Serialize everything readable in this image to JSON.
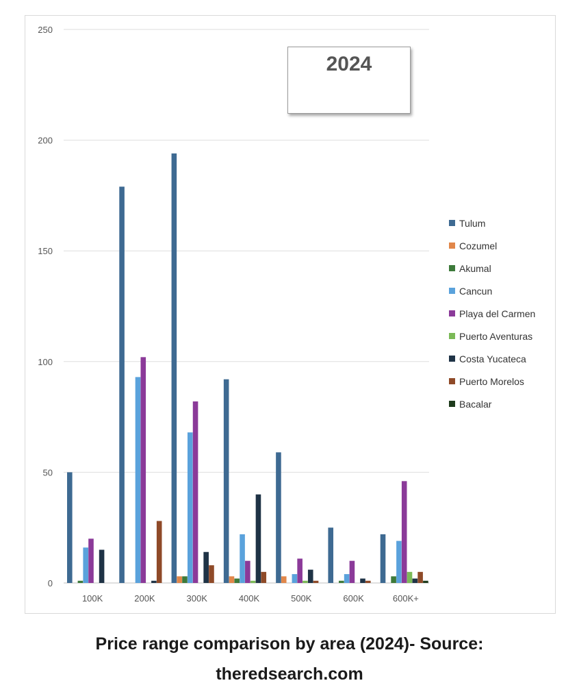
{
  "chart_data": {
    "type": "bar",
    "title": "2024",
    "xlabel": "",
    "ylabel": "",
    "ylim": [
      0,
      250
    ],
    "yticks": [
      0,
      50,
      100,
      150,
      200,
      250
    ],
    "grid": true,
    "legend_position": "right",
    "categories": [
      "100K",
      "200K",
      "300K",
      "400K",
      "500K",
      "600K",
      "600K+"
    ],
    "series": [
      {
        "name": "Tulum",
        "color": "#3e6a92",
        "values": [
          50,
          179,
          194,
          92,
          59,
          25,
          22
        ]
      },
      {
        "name": "Cozumel",
        "color": "#e1874a",
        "values": [
          0,
          0,
          3,
          3,
          3,
          0,
          0
        ]
      },
      {
        "name": "Akumal",
        "color": "#3d7a3a",
        "values": [
          1,
          0,
          3,
          2,
          0,
          1,
          3
        ]
      },
      {
        "name": "Cancun",
        "color": "#5aa2dc",
        "values": [
          16,
          93,
          68,
          22,
          4,
          4,
          19
        ]
      },
      {
        "name": "Playa del Carmen",
        "color": "#8b3a99",
        "values": [
          20,
          102,
          82,
          10,
          11,
          10,
          46
        ]
      },
      {
        "name": "Puerto Aventuras",
        "color": "#7bb957",
        "values": [
          0,
          0,
          0,
          1,
          1,
          0,
          5
        ]
      },
      {
        "name": "Costa Yucateca",
        "color": "#1f3346",
        "values": [
          15,
          1,
          14,
          40,
          6,
          2,
          2
        ]
      },
      {
        "name": "Puerto Morelos",
        "color": "#8f4a28",
        "values": [
          0,
          28,
          8,
          5,
          1,
          1,
          5
        ]
      },
      {
        "name": "Bacalar",
        "color": "#1e3b1c",
        "values": [
          0,
          0,
          0,
          0,
          0,
          0,
          1
        ]
      }
    ]
  },
  "caption": {
    "line1": "Price range comparison by area (2024)- Source:",
    "line2": "theredsearch.com"
  }
}
